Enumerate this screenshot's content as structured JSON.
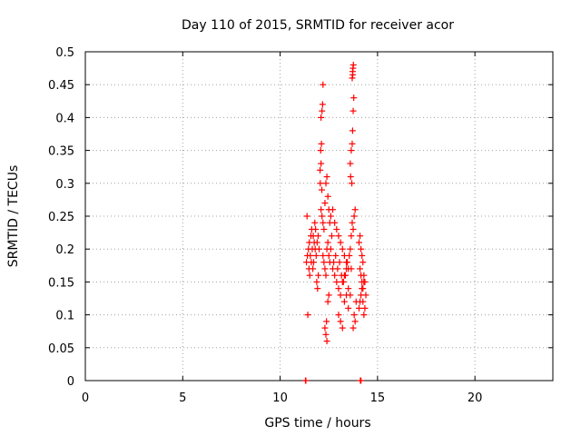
{
  "chart_data": {
    "type": "scatter",
    "title": "Day 110 of 2015, SRMTID for receiver acor",
    "xlabel": "GPS time / hours",
    "ylabel": "SRMTID / TECUs",
    "xlim": [
      0,
      24
    ],
    "ylim": [
      0,
      0.5
    ],
    "xticks": [
      0,
      5,
      10,
      15,
      20
    ],
    "xtick_labels": [
      "0",
      "5",
      "10",
      "15",
      "20"
    ],
    "yticks": [
      0,
      0.05,
      0.1,
      0.15,
      0.2,
      0.25,
      0.3,
      0.35,
      0.4,
      0.45,
      0.5
    ],
    "ytick_labels": [
      "0",
      "0.05",
      "0.1",
      "0.15",
      "0.2",
      "0.25",
      "0.3",
      "0.35",
      "0.4",
      "0.45",
      "0.5"
    ],
    "grid": true,
    "marker": "plus",
    "color": "#ff0000",
    "series": [
      {
        "name": "SRMTID",
        "points": [
          [
            11.3,
            0.0
          ],
          [
            11.32,
            0.0
          ],
          [
            14.12,
            0.0
          ],
          [
            14.15,
            0.0
          ],
          [
            11.35,
            0.18
          ],
          [
            11.4,
            0.19
          ],
          [
            11.45,
            0.2
          ],
          [
            11.5,
            0.21
          ],
          [
            11.55,
            0.19
          ],
          [
            11.6,
            0.18
          ],
          [
            11.65,
            0.2
          ],
          [
            11.7,
            0.22
          ],
          [
            11.75,
            0.21
          ],
          [
            11.8,
            0.2
          ],
          [
            11.85,
            0.19
          ],
          [
            11.9,
            0.21
          ],
          [
            11.95,
            0.22
          ],
          [
            12.0,
            0.2
          ],
          [
            11.38,
            0.25
          ],
          [
            11.42,
            0.1
          ],
          [
            11.48,
            0.17
          ],
          [
            11.52,
            0.16
          ],
          [
            11.58,
            0.22
          ],
          [
            11.62,
            0.23
          ],
          [
            11.68,
            0.17
          ],
          [
            11.72,
            0.18
          ],
          [
            11.78,
            0.24
          ],
          [
            11.82,
            0.23
          ],
          [
            11.88,
            0.15
          ],
          [
            11.92,
            0.14
          ],
          [
            11.96,
            0.16
          ],
          [
            12.05,
            0.32
          ],
          [
            12.1,
            0.33
          ],
          [
            12.08,
            0.35
          ],
          [
            12.12,
            0.36
          ],
          [
            12.1,
            0.4
          ],
          [
            12.15,
            0.41
          ],
          [
            12.18,
            0.42
          ],
          [
            12.2,
            0.45
          ],
          [
            12.06,
            0.3
          ],
          [
            12.14,
            0.29
          ],
          [
            12.1,
            0.26
          ],
          [
            12.15,
            0.25
          ],
          [
            12.2,
            0.24
          ],
          [
            12.25,
            0.23
          ],
          [
            12.3,
            0.27
          ],
          [
            12.35,
            0.3
          ],
          [
            12.4,
            0.31
          ],
          [
            12.45,
            0.28
          ],
          [
            12.5,
            0.26
          ],
          [
            12.55,
            0.24
          ],
          [
            12.2,
            0.19
          ],
          [
            12.25,
            0.18
          ],
          [
            12.3,
            0.17
          ],
          [
            12.35,
            0.16
          ],
          [
            12.4,
            0.2
          ],
          [
            12.45,
            0.21
          ],
          [
            12.5,
            0.19
          ],
          [
            12.55,
            0.18
          ],
          [
            12.6,
            0.2
          ],
          [
            12.65,
            0.22
          ],
          [
            12.3,
            0.08
          ],
          [
            12.35,
            0.07
          ],
          [
            12.4,
            0.06
          ],
          [
            12.38,
            0.09
          ],
          [
            12.45,
            0.12
          ],
          [
            12.5,
            0.13
          ],
          [
            12.6,
            0.25
          ],
          [
            12.7,
            0.26
          ],
          [
            12.8,
            0.24
          ],
          [
            12.9,
            0.23
          ],
          [
            13.0,
            0.22
          ],
          [
            13.1,
            0.21
          ],
          [
            13.2,
            0.2
          ],
          [
            13.3,
            0.19
          ],
          [
            13.4,
            0.18
          ],
          [
            13.5,
            0.17
          ],
          [
            12.7,
            0.17
          ],
          [
            12.8,
            0.16
          ],
          [
            12.9,
            0.15
          ],
          [
            13.0,
            0.14
          ],
          [
            13.1,
            0.13
          ],
          [
            13.2,
            0.15
          ],
          [
            13.3,
            0.16
          ],
          [
            13.4,
            0.17
          ],
          [
            13.5,
            0.14
          ],
          [
            13.6,
            0.13
          ],
          [
            12.75,
            0.18
          ],
          [
            12.85,
            0.19
          ],
          [
            12.95,
            0.17
          ],
          [
            13.05,
            0.18
          ],
          [
            13.15,
            0.16
          ],
          [
            13.25,
            0.15
          ],
          [
            13.35,
            0.16
          ],
          [
            13.45,
            0.18
          ],
          [
            13.55,
            0.19
          ],
          [
            13.65,
            0.17
          ],
          [
            13.0,
            0.1
          ],
          [
            13.1,
            0.09
          ],
          [
            13.2,
            0.08
          ],
          [
            13.3,
            0.12
          ],
          [
            13.4,
            0.13
          ],
          [
            13.5,
            0.11
          ],
          [
            13.6,
            0.2
          ],
          [
            13.65,
            0.22
          ],
          [
            13.7,
            0.24
          ],
          [
            13.75,
            0.23
          ],
          [
            13.8,
            0.25
          ],
          [
            13.85,
            0.26
          ],
          [
            13.6,
            0.33
          ],
          [
            13.65,
            0.35
          ],
          [
            13.7,
            0.36
          ],
          [
            13.72,
            0.38
          ],
          [
            13.75,
            0.41
          ],
          [
            13.78,
            0.43
          ],
          [
            13.62,
            0.31
          ],
          [
            13.68,
            0.3
          ],
          [
            13.7,
            0.46
          ],
          [
            13.72,
            0.47
          ],
          [
            13.74,
            0.475
          ],
          [
            13.76,
            0.48
          ],
          [
            13.73,
            0.465
          ],
          [
            13.8,
            0.1
          ],
          [
            13.85,
            0.09
          ],
          [
            13.75,
            0.08
          ],
          [
            13.9,
            0.12
          ],
          [
            14.05,
            0.21
          ],
          [
            14.1,
            0.22
          ],
          [
            14.15,
            0.2
          ],
          [
            14.2,
            0.19
          ],
          [
            14.25,
            0.18
          ],
          [
            14.1,
            0.17
          ],
          [
            14.15,
            0.16
          ],
          [
            14.2,
            0.15
          ],
          [
            14.25,
            0.14
          ],
          [
            14.3,
            0.15
          ],
          [
            14.05,
            0.11
          ],
          [
            14.1,
            0.12
          ],
          [
            14.15,
            0.13
          ],
          [
            14.2,
            0.14
          ],
          [
            14.25,
            0.12
          ],
          [
            14.3,
            0.16
          ],
          [
            14.35,
            0.15
          ],
          [
            14.4,
            0.13
          ],
          [
            14.3,
            0.1
          ],
          [
            14.35,
            0.11
          ]
        ]
      }
    ]
  }
}
